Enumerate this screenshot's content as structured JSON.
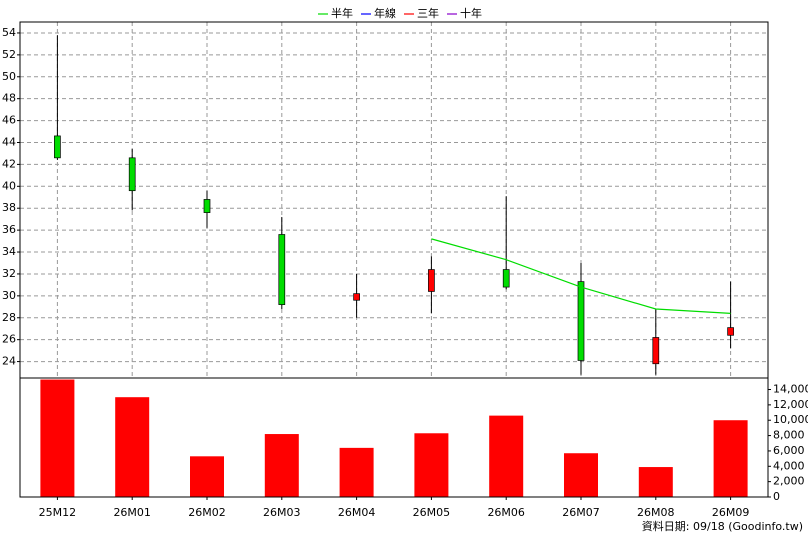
{
  "chart_data": [
    {
      "type": "candlestick",
      "categories": [
        "25M12",
        "26M01",
        "26M02",
        "26M03",
        "26M04",
        "26M05",
        "26M06",
        "26M07",
        "26M08",
        "26M09"
      ],
      "open": [
        44.6,
        42.6,
        38.8,
        35.6,
        29.6,
        30.4,
        32.4,
        31.3,
        23.8,
        26.4
      ],
      "high": [
        53.8,
        43.4,
        39.6,
        37.2,
        32.0,
        33.6,
        39.1,
        33.0,
        28.8,
        31.3
      ],
      "low": [
        42.4,
        37.8,
        36.2,
        28.8,
        28.0,
        28.4,
        30.6,
        22.8,
        22.8,
        25.2
      ],
      "close": [
        42.6,
        39.6,
        37.6,
        29.2,
        30.2,
        32.4,
        30.8,
        24.1,
        26.2,
        27.1
      ],
      "up_color": "#ff0000",
      "down_color": "#00dd00",
      "series": [
        {
          "name": "半年",
          "color": "#00dd00",
          "values": [
            null,
            null,
            null,
            null,
            null,
            35.2,
            33.3,
            30.8,
            28.8,
            28.4
          ]
        },
        {
          "name": "年線",
          "color": "#0000ff",
          "values": [
            null,
            null,
            null,
            null,
            null,
            null,
            null,
            null,
            null,
            null
          ]
        },
        {
          "name": "三年",
          "color": "#ff0000",
          "values": [
            null,
            null,
            null,
            null,
            null,
            null,
            null,
            null,
            null,
            null
          ]
        },
        {
          "name": "十年",
          "color": "#8800cc",
          "values": [
            null,
            null,
            null,
            null,
            null,
            null,
            null,
            null,
            null,
            null
          ]
        }
      ],
      "ylim": [
        22.5,
        55
      ],
      "yticks": [
        24,
        26,
        28,
        30,
        32,
        34,
        36,
        38,
        40,
        42,
        44,
        46,
        48,
        50,
        52,
        54
      ],
      "grid": true,
      "legend": "top"
    },
    {
      "type": "bar",
      "categories": [
        "25M12",
        "26M01",
        "26M02",
        "26M03",
        "26M04",
        "26M05",
        "26M06",
        "26M07",
        "26M08",
        "26M09"
      ],
      "values": [
        15300,
        13000,
        5300,
        8200,
        6400,
        8300,
        10600,
        5700,
        3900,
        10000
      ],
      "color": "#ff0000",
      "ylim": [
        0,
        15500
      ],
      "yticks": [
        0,
        {
          "value": 2000,
          "label": "2,000"
        },
        {
          "value": 4000,
          "label": "4,000"
        },
        {
          "value": 6000,
          "label": "6,000"
        },
        {
          "value": 8000,
          "label": "8,000"
        },
        {
          "value": 10000,
          "label": "10,000"
        },
        {
          "value": 12000,
          "label": "12,000"
        },
        {
          "value": 14000,
          "label": "14,000"
        }
      ]
    }
  ],
  "footer": "資料日期: 09/18 (Goodinfo.tw)"
}
